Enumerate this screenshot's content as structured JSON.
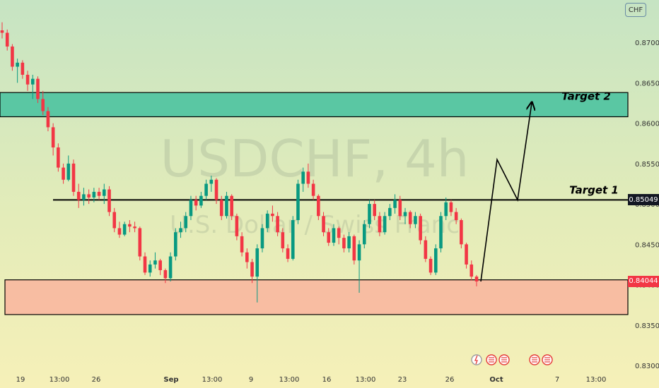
{
  "chart_data": {
    "type": "candlestick",
    "symbol_watermark": "USDCHF, 4h",
    "description_watermark": "U.S. Dollar / Swiss Franc",
    "currency": "CHF",
    "y_axis": {
      "ticks": [
        "0.87000",
        "0.86500",
        "0.86000",
        "0.85500",
        "0.85000",
        "0.84500",
        "0.84000",
        "0.83500",
        "0.83000"
      ],
      "range": [
        0.8295,
        0.8745
      ]
    },
    "x_axis": {
      "ticks": [
        "19",
        "13:00",
        "26",
        "Sep",
        "13:00",
        "9",
        "13:00",
        "16",
        "13:00",
        "23",
        "26",
        "Oct",
        "7",
        "13:00"
      ]
    },
    "price_labels": [
      {
        "value": "0.85049",
        "style": "dark"
      },
      {
        "value": "0.84044",
        "style": "red"
      }
    ],
    "zones": [
      {
        "name": "Target 2 zone",
        "from": 0.8608,
        "to": 0.8638,
        "color": "#4cc3a0"
      },
      {
        "name": "Support zone",
        "from": 0.8363,
        "to": 0.8406,
        "color": "#f8b7a0"
      }
    ],
    "levels": [
      {
        "label": "Target 1",
        "value": 0.8505
      },
      {
        "label": "Target 2",
        "value": 0.8621
      }
    ],
    "projection": [
      0.8404,
      0.8555,
      0.8505,
      0.8625
    ],
    "candles": [
      [
        0.8715,
        0.8725,
        0.8705,
        0.8712
      ],
      [
        0.8712,
        0.8716,
        0.869,
        0.8695
      ],
      [
        0.8695,
        0.8698,
        0.8665,
        0.867
      ],
      [
        0.867,
        0.868,
        0.865,
        0.8675
      ],
      [
        0.8675,
        0.8678,
        0.8655,
        0.866
      ],
      [
        0.866,
        0.8665,
        0.864,
        0.8648
      ],
      [
        0.8648,
        0.866,
        0.863,
        0.8655
      ],
      [
        0.8655,
        0.8658,
        0.8625,
        0.863
      ],
      [
        0.863,
        0.864,
        0.861,
        0.8615
      ],
      [
        0.8615,
        0.862,
        0.859,
        0.8595
      ],
      [
        0.8595,
        0.86,
        0.856,
        0.857
      ],
      [
        0.857,
        0.8575,
        0.854,
        0.8545
      ],
      [
        0.8545,
        0.855,
        0.8525,
        0.853
      ],
      [
        0.853,
        0.856,
        0.8528,
        0.855
      ],
      [
        0.855,
        0.8555,
        0.851,
        0.8515
      ],
      [
        0.8515,
        0.8525,
        0.8495,
        0.8505
      ],
      [
        0.8505,
        0.852,
        0.8498,
        0.8512
      ],
      [
        0.8512,
        0.8518,
        0.85,
        0.8508
      ],
      [
        0.8508,
        0.852,
        0.8502,
        0.8515
      ],
      [
        0.8515,
        0.852,
        0.8505,
        0.851
      ],
      [
        0.851,
        0.8525,
        0.85,
        0.8518
      ],
      [
        0.8518,
        0.8522,
        0.8485,
        0.849
      ],
      [
        0.849,
        0.8495,
        0.8465,
        0.847
      ],
      [
        0.847,
        0.8478,
        0.8458,
        0.8462
      ],
      [
        0.8462,
        0.8478,
        0.846,
        0.8475
      ],
      [
        0.8475,
        0.848,
        0.8465,
        0.8472
      ],
      [
        0.8472,
        0.8478,
        0.8465,
        0.847
      ],
      [
        0.847,
        0.8472,
        0.843,
        0.8435
      ],
      [
        0.8435,
        0.844,
        0.8412,
        0.8415
      ],
      [
        0.8415,
        0.843,
        0.841,
        0.8425
      ],
      [
        0.8425,
        0.844,
        0.842,
        0.843
      ],
      [
        0.843,
        0.8432,
        0.8412,
        0.8418
      ],
      [
        0.8418,
        0.842,
        0.8402,
        0.8408
      ],
      [
        0.8408,
        0.844,
        0.8404,
        0.8435
      ],
      [
        0.8435,
        0.847,
        0.843,
        0.8465
      ],
      [
        0.8465,
        0.8478,
        0.8458,
        0.847
      ],
      [
        0.847,
        0.849,
        0.8465,
        0.8485
      ],
      [
        0.8485,
        0.851,
        0.848,
        0.8505
      ],
      [
        0.8505,
        0.851,
        0.8492,
        0.8498
      ],
      [
        0.8498,
        0.8515,
        0.8495,
        0.851
      ],
      [
        0.851,
        0.853,
        0.8505,
        0.8525
      ],
      [
        0.8525,
        0.8535,
        0.8515,
        0.853
      ],
      [
        0.853,
        0.8532,
        0.85,
        0.8505
      ],
      [
        0.8505,
        0.851,
        0.848,
        0.8485
      ],
      [
        0.8485,
        0.8515,
        0.8482,
        0.851
      ],
      [
        0.851,
        0.8512,
        0.848,
        0.8485
      ],
      [
        0.8485,
        0.8488,
        0.8455,
        0.846
      ],
      [
        0.846,
        0.8465,
        0.8435,
        0.844
      ],
      [
        0.844,
        0.8445,
        0.842,
        0.8428
      ],
      [
        0.8428,
        0.8432,
        0.8402,
        0.841
      ],
      [
        0.841,
        0.845,
        0.8378,
        0.8445
      ],
      [
        0.8445,
        0.8475,
        0.844,
        0.847
      ],
      [
        0.847,
        0.8492,
        0.8465,
        0.8488
      ],
      [
        0.8488,
        0.8498,
        0.8478,
        0.8485
      ],
      [
        0.8485,
        0.849,
        0.846,
        0.8465
      ],
      [
        0.8465,
        0.847,
        0.844,
        0.8445
      ],
      [
        0.8445,
        0.845,
        0.8428,
        0.8432
      ],
      [
        0.8432,
        0.8485,
        0.843,
        0.848
      ],
      [
        0.848,
        0.853,
        0.8475,
        0.8525
      ],
      [
        0.8525,
        0.8545,
        0.8515,
        0.854
      ],
      [
        0.854,
        0.855,
        0.852,
        0.8525
      ],
      [
        0.8525,
        0.853,
        0.8505,
        0.851
      ],
      [
        0.851,
        0.8512,
        0.848,
        0.8485
      ],
      [
        0.8485,
        0.849,
        0.846,
        0.8465
      ],
      [
        0.8465,
        0.847,
        0.8448,
        0.8452
      ],
      [
        0.8452,
        0.8475,
        0.8448,
        0.847
      ],
      [
        0.847,
        0.8472,
        0.845,
        0.8458
      ],
      [
        0.8458,
        0.8462,
        0.844,
        0.8445
      ],
      [
        0.8445,
        0.8465,
        0.844,
        0.846
      ],
      [
        0.846,
        0.8462,
        0.8425,
        0.843
      ],
      [
        0.843,
        0.8455,
        0.839,
        0.845
      ],
      [
        0.845,
        0.848,
        0.8445,
        0.8475
      ],
      [
        0.8475,
        0.8505,
        0.847,
        0.85
      ],
      [
        0.85,
        0.8505,
        0.848,
        0.8485
      ],
      [
        0.8485,
        0.849,
        0.846,
        0.8465
      ],
      [
        0.8465,
        0.849,
        0.8462,
        0.8485
      ],
      [
        0.8485,
        0.85,
        0.848,
        0.8495
      ],
      [
        0.8495,
        0.8512,
        0.8488,
        0.8505
      ],
      [
        0.8505,
        0.851,
        0.848,
        0.8485
      ],
      [
        0.8485,
        0.8495,
        0.8475,
        0.849
      ],
      [
        0.849,
        0.8492,
        0.847,
        0.8475
      ],
      [
        0.8475,
        0.849,
        0.847,
        0.8485
      ],
      [
        0.8485,
        0.8488,
        0.845,
        0.8455
      ],
      [
        0.8455,
        0.846,
        0.8428,
        0.8432
      ],
      [
        0.8432,
        0.8435,
        0.8412,
        0.8415
      ],
      [
        0.8415,
        0.845,
        0.8412,
        0.8445
      ],
      [
        0.8445,
        0.849,
        0.844,
        0.8485
      ],
      [
        0.8485,
        0.8508,
        0.848,
        0.8502
      ],
      [
        0.8502,
        0.8505,
        0.8485,
        0.849
      ],
      [
        0.849,
        0.8495,
        0.8475,
        0.848
      ],
      [
        0.848,
        0.8482,
        0.8445,
        0.845
      ],
      [
        0.845,
        0.8452,
        0.842,
        0.8425
      ],
      [
        0.8425,
        0.843,
        0.8405,
        0.841
      ],
      [
        0.841,
        0.8412,
        0.8398,
        0.8404
      ]
    ]
  }
}
